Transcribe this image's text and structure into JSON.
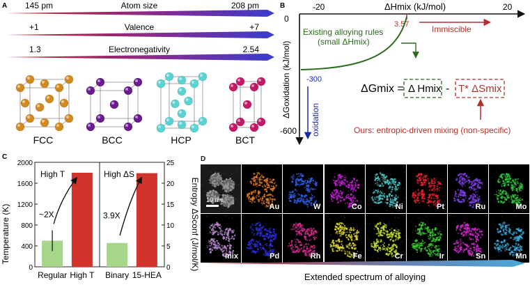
{
  "panelA": {
    "label": "A",
    "bars": [
      {
        "left": "145 pm",
        "title": "Atom size",
        "right": "208 pm"
      },
      {
        "left": "+1",
        "title": "Valence",
        "right": "+7"
      },
      {
        "left": "1.3",
        "title": "Electronegativity",
        "right": "2.54"
      }
    ],
    "crystals": [
      {
        "name": "FCC",
        "color": "#d28a1f"
      },
      {
        "name": "BCC",
        "color": "#6a1b8f"
      },
      {
        "name": "HCP",
        "color": "#5ad3d3"
      },
      {
        "name": "BCT",
        "color": "#c21866"
      }
    ]
  },
  "panelB": {
    "label": "B",
    "x_title": "ΔHmix (kJ/mol)",
    "x_ticks": [
      "-20",
      "0",
      "20"
    ],
    "marker": "3.57",
    "immiscible": "Immiscible",
    "y_title": "ΔGoxidation (kJ/mol)",
    "y_ticks": [
      "0",
      "-600"
    ],
    "y_marker": "-300",
    "oxidation": "oxidation",
    "existing_line1": "Existing alloying rules",
    "existing_line2": "(small ΔHmix)",
    "eq_lhs": "ΔGmix =",
    "eq_h": "Δ Hmix",
    "eq_minus": "-",
    "eq_ts": "T* ΔSmix",
    "ours": "Ours: entropic-driven mixing (non-specific)",
    "colors": {
      "green": "#2d6b1e",
      "red": "#b5302a",
      "blue": "#1c2aa8"
    }
  },
  "panelC": {
    "label": "C",
    "chart_data": {
      "type": "bar",
      "categories": [
        "Regular",
        "High T",
        "Binary",
        "15-HEA"
      ],
      "temperature": [
        500,
        1800
      ],
      "entropy": [
        5.7,
        22.4
      ],
      "ylabel_left": "Temperature (K)",
      "ylabel_right": "Entropy ΔSconf (J/mol/K)",
      "left_ticks": [
        0,
        400,
        800,
        1200,
        1600,
        2000
      ],
      "right_ticks": [
        0,
        5,
        10,
        15,
        20,
        25
      ],
      "ylim_left": [
        0,
        2000
      ],
      "ylim_right": [
        0,
        25
      ],
      "error_bar": [
        300,
        700
      ],
      "annotations": [
        "High T",
        "~2X",
        "High ΔS",
        "3.9X"
      ],
      "colors": {
        "regular": "#a6d68a",
        "high": "#d0342c"
      }
    }
  },
  "panelD": {
    "label": "D",
    "scale": "10 nm",
    "row1": [
      {
        "label": "",
        "color": "#9a9a9a"
      },
      {
        "label": "Au",
        "color": "#e07b20"
      },
      {
        "label": "W",
        "color": "#2f5ee0"
      },
      {
        "label": "Co",
        "color": "#c21fd0"
      },
      {
        "label": "Ni",
        "color": "#4fc8c8"
      },
      {
        "label": "Pt",
        "color": "#e0202c"
      },
      {
        "label": "Ru",
        "color": "#7b3fe0"
      },
      {
        "label": "Mo",
        "color": "#30c040"
      }
    ],
    "row2": [
      {
        "label": "mix",
        "color": "#b98ad0"
      },
      {
        "label": "Pd",
        "color": "#2a2fd8"
      },
      {
        "label": "Rh",
        "color": "#d02a8a"
      },
      {
        "label": "Fe",
        "color": "#d8d030"
      },
      {
        "label": "Cr",
        "color": "#c8e030"
      },
      {
        "label": "Ir",
        "color": "#38d030"
      },
      {
        "label": "Sn",
        "color": "#d02ad0"
      },
      {
        "label": "Mn",
        "color": "#3aa8d8"
      }
    ],
    "arrow_text": "Extended spectrum of alloying"
  }
}
